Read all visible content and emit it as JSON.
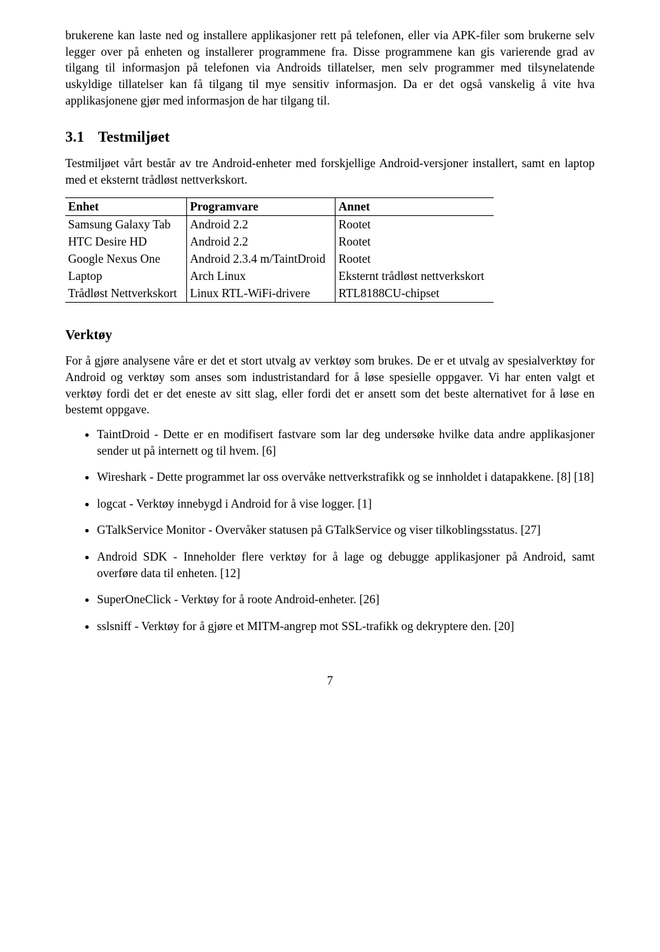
{
  "para1": "brukerene kan laste ned og installere applikasjoner rett på telefonen, eller via APK-filer som brukerne selv legger over på enheten og installerer programmene fra. Disse programmene kan gis varierende grad av tilgang til informasjon på telefonen via Androids tillatelser, men selv programmer med tilsynelatende uskyldige tillatelser kan få tilgang til mye sensitiv informasjon. Da er det også vanskelig å vite hva applikasjonene gjør med informasjon de har tilgang til.",
  "heading_num": "3.1",
  "heading_text": "Testmiljøet",
  "para2": "Testmiljøet vårt består av tre Android-enheter med forskjellige Android-versjoner installert, samt en laptop med et eksternt trådløst nettverkskort.",
  "table": {
    "headers": [
      "Enhet",
      "Programvare",
      "Annet"
    ],
    "rows": [
      [
        "Samsung Galaxy Tab",
        "Android 2.2",
        "Rootet"
      ],
      [
        "HTC Desire HD",
        "Android 2.2",
        "Rootet"
      ],
      [
        "Google Nexus One",
        "Android 2.3.4 m/TaintDroid",
        "Rootet"
      ],
      [
        "Laptop",
        "Arch Linux",
        "Eksternt trådløst nettverkskort"
      ],
      [
        "Trådløst Nettverkskort",
        "Linux RTL-WiFi-drivere",
        "RTL8188CU-chipset"
      ]
    ]
  },
  "tools_heading": "Verktøy",
  "para3": "For å gjøre analysene våre er det et stort utvalg av verktøy som brukes. De er et utvalg av spesialverktøy for Android og verktøy som anses som industristandard for å løse spesielle oppgaver. Vi har enten valgt et verktøy fordi det er det eneste av sitt slag, eller fordi det er ansett som det beste alternativet for å løse en bestemt oppgave.",
  "bullets": [
    "TaintDroid - Dette er en modifisert fastvare som lar deg undersøke hvilke data andre applikasjoner sender ut på internett og til hvem. [6]",
    "Wireshark - Dette programmet lar oss overvåke nettverkstrafikk og se innholdet i datapakkene. [8] [18]",
    "logcat - Verktøy innebygd i Android for å vise logger. [1]",
    "GTalkService Monitor - Overvåker statusen på GTalkService og viser tilkoblingsstatus. [27]",
    "Android SDK - Inneholder flere verktøy for å lage og debugge applikasjoner på Android, samt overføre data til enheten. [12]",
    "SuperOneClick - Verktøy for å roote Android-enheter. [26]",
    "sslsniff - Verktøy for å gjøre et MITM-angrep mot SSL-trafikk og dekryptere den. [20]"
  ],
  "page_number": "7"
}
